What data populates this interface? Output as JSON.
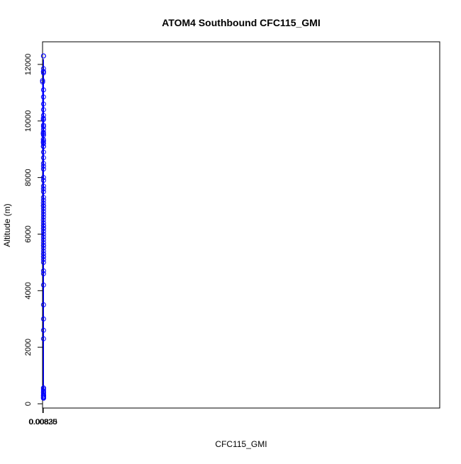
{
  "chart_data": {
    "type": "scatter",
    "title": "ATOM4 Southbound CFC115_GMI",
    "xlabel": "CFC115_GMI",
    "ylabel": "Altitude (m)",
    "xlim": [
      0.0082075,
      0.0839175
    ],
    "ylim": [
      -150,
      12800
    ],
    "xticks": [
      0.00825,
      0.0083,
      0.00835
    ],
    "xtick_labels": [
      "0.00825",
      "0.00830",
      "0.00835"
    ],
    "yticks": [
      0,
      2000,
      4000,
      6000,
      8000,
      10000,
      12000
    ],
    "ytick_labels": [
      "0",
      "2000",
      "4000",
      "6000",
      "8000",
      "10000",
      "12000"
    ],
    "grid": false,
    "legend": "none",
    "color": "#0000ff",
    "marker": "open-circle",
    "connected": true,
    "series": [
      {
        "x": [
          0.008219,
          0.008389,
          0.008389,
          0.008372,
          0.008386,
          0.008389,
          0.008389,
          0.008384,
          0.008389,
          0.00837,
          0.008389,
          0.008385,
          0.008389,
          0.008389,
          0.008372,
          0.008389,
          0.008386,
          0.008389,
          0.008372,
          0.008389,
          0.008386,
          0.008389,
          0.008365,
          0.008389,
          0.008388,
          0.008389,
          0.008364,
          0.008389,
          0.008385,
          0.008389,
          0.00837,
          0.008389,
          0.008354,
          0.008389,
          0.008386,
          0.008389,
          0.008357,
          0.008389,
          0.008388,
          0.008389,
          0.008361,
          0.008389,
          0.008366,
          0.008389,
          0.008374,
          0.008389,
          0.008389,
          0.008389,
          0.008389,
          0.008389,
          0.008381,
          0.008389,
          0.008389,
          0.008388,
          0.008389,
          0.008389,
          0.008389,
          0.008389,
          0.008389,
          0.008389,
          0.008389,
          0.008389,
          0.008389,
          0.008389,
          0.008389,
          0.008389,
          0.008389,
          0.008389,
          0.008389,
          0.008389
        ],
        "y": [
          11380,
          560,
          11750,
          7100,
          11850,
          4700,
          10400,
          7600,
          11700,
          7000,
          12300,
          6400,
          9100,
          6200,
          10050,
          5700,
          9850,
          7300,
          10050,
          6700,
          9200,
          5400,
          10100,
          5300,
          9800,
          6900,
          9550,
          5200,
          8500,
          6800,
          9600,
          7900,
          9250,
          5500,
          8400,
          6100,
          9550,
          5600,
          8300,
          5900,
          9350,
          5800,
          9100,
          6200,
          11750,
          5100,
          8700,
          3500,
          7500,
          2300,
          10850,
          6300,
          7200,
          5300,
          9300,
          4200,
          6000,
          2600,
          12300,
          400,
          10600,
          300,
          8000,
          250,
          6600,
          400,
          5000,
          200,
          3000,
          220
        ]
      },
      {
        "x": [
          0.008214,
          0.00837,
          0.008389,
          0.008389,
          0.008389,
          0.008389,
          0.008389,
          0.008389,
          0.008389,
          0.008389,
          0.008389,
          0.008389,
          0.008389,
          0.008389,
          0.008389,
          0.008389,
          0.008389,
          0.008389,
          0.008389,
          0.008389,
          0.008389,
          0.008389,
          0.008389,
          0.008389,
          0.008389
        ],
        "y": [
          11430,
          6500,
          5200,
          550,
          9500,
          300,
          7700,
          450,
          10200,
          250,
          4600,
          300,
          8900,
          350,
          6300,
          250,
          11100,
          200,
          5600,
          300,
          9700,
          200,
          7000,
          300,
          500
        ]
      }
    ]
  }
}
